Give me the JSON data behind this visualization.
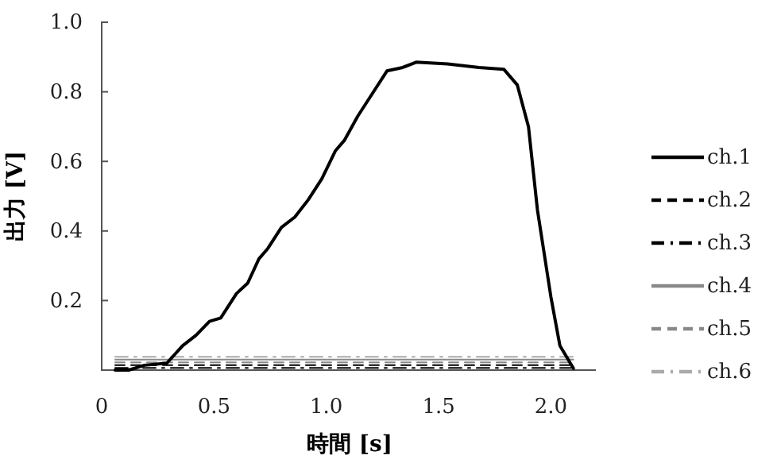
{
  "chart_data": {
    "type": "line",
    "xlabel": "時間 [s]",
    "ylabel": "出力 [V]",
    "xlim": [
      0,
      2.2
    ],
    "xticks": [
      0,
      0.5,
      {
        "value": 1,
        "label": "1.0"
      },
      1.5,
      {
        "value": 2,
        "label": "2.0"
      }
    ],
    "ylim": [
      0,
      1.0
    ],
    "yticks": [
      0.2,
      0.4,
      0.6,
      0.8,
      {
        "value": 1,
        "label": "1.0"
      }
    ],
    "grid": false,
    "legend": "right",
    "marker": "none",
    "series": [
      {
        "name": "ch.1",
        "color": "#000000",
        "line_style": "solid",
        "x": [
          0.06,
          0.12,
          0.19,
          0.29,
          0.36,
          0.42,
          0.48,
          0.53,
          0.6,
          0.65,
          0.7,
          0.74,
          0.8,
          0.86,
          0.92,
          0.98,
          1.04,
          1.08,
          1.14,
          1.2,
          1.27,
          1.34,
          1.4,
          1.54,
          1.68,
          1.79,
          1.85,
          1.9,
          1.94,
          2.0,
          2.04,
          2.1
        ],
        "values": [
          0,
          0,
          0.014,
          0.02,
          0.07,
          0.1,
          0.14,
          0.15,
          0.22,
          0.25,
          0.32,
          0.35,
          0.41,
          0.44,
          0.49,
          0.55,
          0.63,
          0.66,
          0.73,
          0.79,
          0.86,
          0.87,
          0.885,
          0.88,
          0.87,
          0.865,
          0.82,
          0.7,
          0.46,
          0.21,
          0.07,
          0.005
        ]
      },
      {
        "name": "ch.2",
        "color": "#000000",
        "line_style": "dashed",
        "x": [
          0.06,
          0.5,
          1.0,
          1.5,
          2.0,
          2.1
        ],
        "values": [
          0.014,
          0.014,
          0.014,
          0.014,
          0.014,
          0.014
        ]
      },
      {
        "name": "ch.3",
        "color": "#000000",
        "line_style": "dashdot",
        "x": [
          0.06,
          0.5,
          1.0,
          1.5,
          2.0,
          2.1
        ],
        "values": [
          0.006,
          0.006,
          0.006,
          0.006,
          0.006,
          0.006
        ]
      },
      {
        "name": "ch.4",
        "color": "#888888",
        "line_style": "solid",
        "x": [
          0.06,
          0.5,
          1.0,
          1.5,
          2.0,
          2.1
        ],
        "values": [
          0.03,
          0.03,
          0.03,
          0.03,
          0.03,
          0.03
        ]
      },
      {
        "name": "ch.5",
        "color": "#888888",
        "line_style": "dashed",
        "x": [
          0.06,
          0.5,
          1.0,
          1.5,
          2.0,
          2.1
        ],
        "values": [
          0.022,
          0.022,
          0.022,
          0.022,
          0.022,
          0.022
        ]
      },
      {
        "name": "ch.6",
        "color": "#aaaaaa",
        "line_style": "dashdot",
        "x": [
          0.06,
          0.5,
          1.0,
          1.5,
          2.0,
          2.1
        ],
        "values": [
          0.038,
          0.038,
          0.038,
          0.038,
          0.038,
          0.038
        ]
      }
    ]
  }
}
